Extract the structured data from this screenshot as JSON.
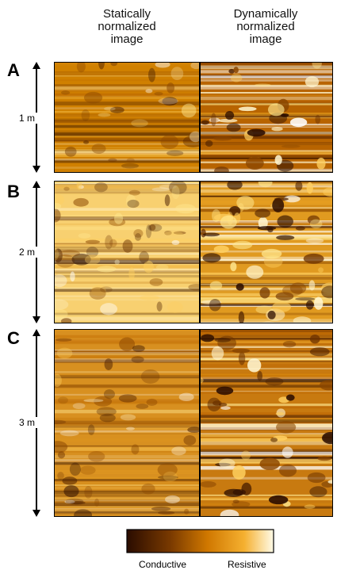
{
  "headers": [
    "Statically normalized image",
    "Dynamically normalized image"
  ],
  "panels": [
    {
      "label": "A",
      "scale": "1 m"
    },
    {
      "label": "B",
      "scale": "2 m"
    },
    {
      "label": "C",
      "scale": "3 m"
    }
  ],
  "colorbar": {
    "low": "Conductive",
    "high": "Resistive"
  }
}
